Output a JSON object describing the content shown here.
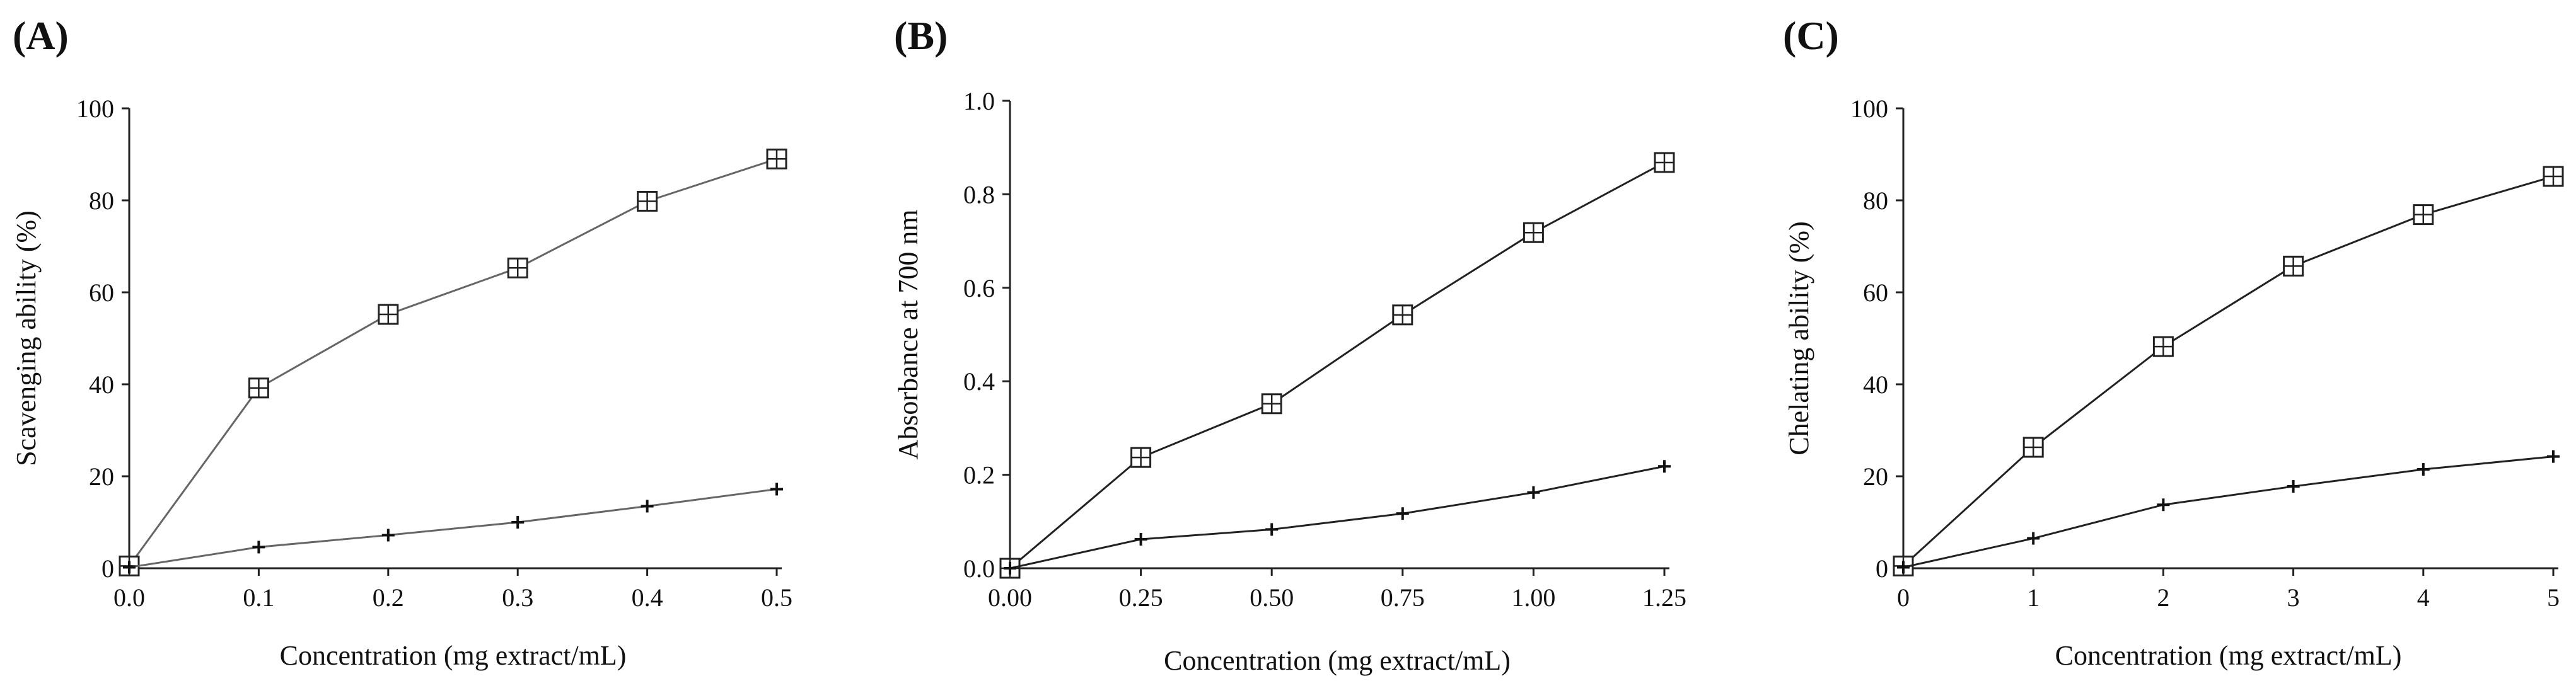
{
  "chart_data": [
    {
      "panel_label": "(A)",
      "type": "line",
      "xlabel": "Concentration (mg extract/mL)",
      "ylabel": "Scavenging ability (%)",
      "xlim": [
        0,
        0.5
      ],
      "ylim": [
        0,
        100
      ],
      "xticks": [
        0,
        0.1,
        0.2,
        0.3,
        0.4,
        0.5
      ],
      "xtick_labels": [
        "0.0",
        "0.1",
        "0.2",
        "0.3",
        "0.4",
        "0.5"
      ],
      "yticks": [
        0,
        20,
        40,
        60,
        80,
        100
      ],
      "ytick_labels": [
        "0",
        "20",
        "40",
        "60",
        "80",
        "100"
      ],
      "series": [
        {
          "name": "squared-plus",
          "marker": "squared-plus",
          "color": "#666666",
          "x": [
            0,
            0.1,
            0.2,
            0.3,
            0.4,
            0.5
          ],
          "y": [
            0.5,
            39.2,
            55.2,
            65.3,
            79.8,
            89.0
          ]
        },
        {
          "name": "plus",
          "marker": "plus",
          "color": "#666666",
          "x": [
            0,
            0.1,
            0.2,
            0.3,
            0.4,
            0.5
          ],
          "y": [
            0.2,
            4.6,
            7.2,
            10.0,
            13.5,
            17.2
          ]
        }
      ]
    },
    {
      "panel_label": "(B)",
      "type": "line",
      "xlabel": "Concentration (mg extract/mL)",
      "ylabel": "Absorbance at 700 nm",
      "xlim": [
        0,
        1.25
      ],
      "ylim": [
        0,
        1.0
      ],
      "xticks": [
        0,
        0.25,
        0.5,
        0.75,
        1.0,
        1.25
      ],
      "xtick_labels": [
        "0.00",
        "0.25",
        "0.50",
        "0.75",
        "1.00",
        "1.25"
      ],
      "yticks": [
        0,
        0.2,
        0.4,
        0.6,
        0.8,
        1.0
      ],
      "ytick_labels": [
        "0.0",
        "0.2",
        "0.4",
        "0.6",
        "0.8",
        "1.0"
      ],
      "series": [
        {
          "name": "squared-plus",
          "marker": "squared-plus",
          "color": "#222222",
          "x": [
            0,
            0.25,
            0.5,
            0.75,
            1.0,
            1.25
          ],
          "y": [
            0.0,
            0.237,
            0.352,
            0.542,
            0.718,
            0.868
          ]
        },
        {
          "name": "plus",
          "marker": "plus",
          "color": "#222222",
          "x": [
            0,
            0.25,
            0.5,
            0.75,
            1.0,
            1.25
          ],
          "y": [
            0.0,
            0.062,
            0.083,
            0.117,
            0.162,
            0.218
          ]
        }
      ]
    },
    {
      "panel_label": "(C)",
      "type": "line",
      "xlabel": "Concentration (mg extract/mL)",
      "ylabel": "Chelating ability (%)",
      "xlim": [
        0,
        5
      ],
      "ylim": [
        0,
        100
      ],
      "xticks": [
        0,
        1,
        2,
        3,
        4,
        5
      ],
      "xtick_labels": [
        "0",
        "1",
        "2",
        "3",
        "4",
        "5"
      ],
      "yticks": [
        0,
        20,
        40,
        60,
        80,
        100
      ],
      "ytick_labels": [
        "0",
        "20",
        "40",
        "60",
        "80",
        "100"
      ],
      "series": [
        {
          "name": "squared-plus",
          "marker": "squared-plus",
          "color": "#222222",
          "x": [
            0,
            1,
            2,
            3,
            4,
            5
          ],
          "y": [
            0.5,
            26.3,
            48.2,
            65.7,
            76.9,
            85.2
          ]
        },
        {
          "name": "plus",
          "marker": "plus",
          "color": "#222222",
          "x": [
            0,
            1,
            2,
            3,
            4,
            5
          ],
          "y": [
            0.2,
            6.5,
            13.8,
            17.8,
            21.5,
            24.3
          ]
        }
      ]
    }
  ]
}
